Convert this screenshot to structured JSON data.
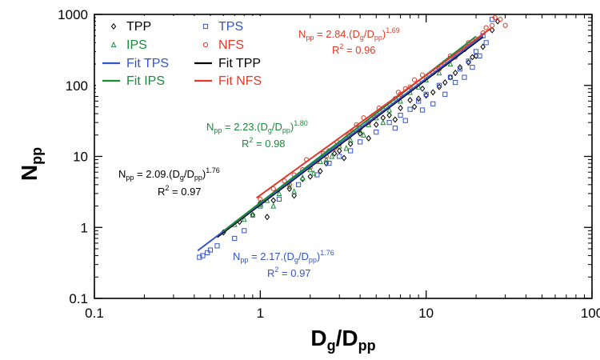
{
  "chart_data": {
    "type": "scatter",
    "xscale": "log",
    "yscale": "log",
    "xlim": [
      0.1,
      100
    ],
    "ylim": [
      0.1,
      1000
    ],
    "x_ticks": [
      "0.1",
      "1",
      "10",
      "100"
    ],
    "y_ticks": [
      "0.1",
      "1",
      "10",
      "100",
      "1000"
    ],
    "xlabel": {
      "main": "D",
      "sub1": "g",
      "mid": "/D",
      "sub2": "pp"
    },
    "ylabel": {
      "main": "N",
      "sub": "pp"
    },
    "grid": false,
    "legend": {
      "placement": "top-left"
    },
    "series": [
      {
        "name": "TPP",
        "marker": "diamond",
        "color": "#000000",
        "fit": {
          "label": "Fit TPP",
          "a": 2.09,
          "b": 1.76,
          "r2": "0.97",
          "color": "#000000",
          "x_range": [
            0.55,
            22
          ]
        },
        "points": [
          [
            0.6,
            0.85
          ],
          [
            0.75,
            1.2
          ],
          [
            0.9,
            1.5
          ],
          [
            1.0,
            2.2
          ],
          [
            1.2,
            2.4
          ],
          [
            1.5,
            3.5
          ],
          [
            1.8,
            4.8
          ],
          [
            2.0,
            5.2
          ],
          [
            2.5,
            8
          ],
          [
            3.0,
            12
          ],
          [
            3.5,
            15
          ],
          [
            4.0,
            21
          ],
          [
            5.0,
            28
          ],
          [
            6.0,
            38
          ],
          [
            7.0,
            48
          ],
          [
            8.0,
            62
          ],
          [
            9.0,
            65
          ],
          [
            10,
            72
          ],
          [
            12,
            95
          ],
          [
            15,
            150
          ],
          [
            18,
            210
          ],
          [
            20,
            260
          ],
          [
            22,
            350
          ],
          [
            25,
            600
          ],
          [
            27,
            800
          ],
          [
            1.6,
            2.8
          ],
          [
            2.3,
            6.2
          ],
          [
            3.2,
            9.5
          ],
          [
            4.5,
            18
          ],
          [
            6.5,
            33
          ],
          [
            8.5,
            50
          ],
          [
            11,
            80
          ],
          [
            13,
            110
          ],
          [
            16,
            180
          ],
          [
            19,
            250
          ],
          [
            1.1,
            1.4
          ],
          [
            2.8,
            11
          ],
          [
            5.5,
            35
          ],
          [
            9.5,
            90
          ],
          [
            14,
            130
          ]
        ]
      },
      {
        "name": "TPS",
        "marker": "square",
        "color": "#3355cc",
        "fit": {
          "label": "Fit TPS",
          "a": 2.17,
          "b": 1.76,
          "r2": "0.97",
          "color": "#3355cc",
          "x_range": [
            0.42,
            22
          ]
        },
        "points": [
          [
            0.43,
            0.38
          ],
          [
            0.45,
            0.4
          ],
          [
            0.48,
            0.44
          ],
          [
            0.5,
            0.48
          ],
          [
            0.55,
            0.55
          ],
          [
            0.7,
            0.7
          ],
          [
            0.8,
            0.9
          ],
          [
            1.0,
            2.0
          ],
          [
            1.3,
            2.5
          ],
          [
            1.7,
            4.0
          ],
          [
            2.2,
            5.5
          ],
          [
            2.6,
            8
          ],
          [
            3.0,
            10
          ],
          [
            3.5,
            12
          ],
          [
            4.0,
            16
          ],
          [
            5.0,
            22
          ],
          [
            6.0,
            30
          ],
          [
            7.0,
            38
          ],
          [
            8.0,
            46
          ],
          [
            9.0,
            60
          ],
          [
            10,
            75
          ],
          [
            12,
            100
          ],
          [
            14,
            130
          ],
          [
            16,
            170
          ],
          [
            18,
            220
          ],
          [
            20,
            300
          ],
          [
            22,
            500
          ],
          [
            25,
            850
          ],
          [
            9.5,
            45
          ],
          [
            11,
            55
          ],
          [
            15,
            110
          ],
          [
            6.5,
            25
          ],
          [
            7.5,
            32
          ],
          [
            13,
            75
          ],
          [
            17,
            130
          ],
          [
            19,
            180
          ],
          [
            21,
            260
          ],
          [
            23,
            400
          ]
        ]
      },
      {
        "name": "IPS",
        "marker": "triangle",
        "color": "#1a8a3a",
        "fit": {
          "label": "Fit IPS",
          "a": 2.23,
          "b": 1.8,
          "r2": "0.98",
          "color": "#1a8a3a",
          "x_range": [
            0.6,
            20
          ]
        },
        "points": [
          [
            0.7,
            1.1
          ],
          [
            0.8,
            1.3
          ],
          [
            0.9,
            1.5
          ],
          [
            1.0,
            2.1
          ],
          [
            1.1,
            2.4
          ],
          [
            1.3,
            3.0
          ],
          [
            1.5,
            3.8
          ],
          [
            1.8,
            5.0
          ],
          [
            2.0,
            6.5
          ],
          [
            2.3,
            8.5
          ],
          [
            2.7,
            10
          ],
          [
            3.0,
            14
          ],
          [
            3.5,
            17
          ],
          [
            4.0,
            23
          ],
          [
            4.5,
            28
          ],
          [
            5.0,
            35
          ],
          [
            6.0,
            45
          ],
          [
            7.0,
            60
          ],
          [
            8.0,
            80
          ],
          [
            9.0,
            95
          ],
          [
            10,
            120
          ],
          [
            12,
            150
          ],
          [
            14,
            200
          ],
          [
            1.2,
            2.0
          ],
          [
            1.6,
            3.2
          ],
          [
            2.1,
            5.8
          ],
          [
            2.5,
            9
          ],
          [
            3.3,
            13
          ],
          [
            4.2,
            20
          ],
          [
            5.5,
            30
          ]
        ]
      },
      {
        "name": "NFS",
        "marker": "circle",
        "color": "#e03a2a",
        "fit": {
          "label": "Fit NFS",
          "a": 2.84,
          "b": 1.69,
          "r2": "0.96",
          "color": "#e03a2a",
          "x_range": [
            0.95,
            25
          ]
        },
        "points": [
          [
            1.0,
            2.5
          ],
          [
            1.2,
            3.5
          ],
          [
            1.4,
            4.5
          ],
          [
            1.6,
            5.5
          ],
          [
            1.8,
            6.5
          ],
          [
            2.0,
            7.0
          ],
          [
            2.2,
            8.5
          ],
          [
            2.5,
            10
          ],
          [
            2.8,
            13
          ],
          [
            3.0,
            15
          ],
          [
            3.3,
            18
          ],
          [
            3.6,
            22
          ],
          [
            4.0,
            25
          ],
          [
            4.5,
            30
          ],
          [
            5.0,
            40
          ],
          [
            5.5,
            45
          ],
          [
            6.0,
            55
          ],
          [
            6.5,
            65
          ],
          [
            7.0,
            75
          ],
          [
            8.0,
            95
          ],
          [
            9.0,
            110
          ],
          [
            10,
            130
          ],
          [
            11,
            150
          ],
          [
            12,
            170
          ],
          [
            13,
            200
          ],
          [
            15,
            250
          ],
          [
            17,
            320
          ],
          [
            20,
            450
          ],
          [
            22,
            550
          ],
          [
            25,
            700
          ],
          [
            28,
            850
          ],
          [
            30,
            700
          ],
          [
            1.9,
            9
          ],
          [
            2.4,
            11
          ],
          [
            2.9,
            16
          ],
          [
            3.8,
            28
          ],
          [
            4.2,
            35
          ],
          [
            5.2,
            48
          ],
          [
            6.8,
            80
          ],
          [
            8.5,
            120
          ],
          [
            9.5,
            140
          ],
          [
            14,
            260
          ],
          [
            18,
            400
          ],
          [
            23,
            650
          ],
          [
            26,
            900
          ],
          [
            1.5,
            4
          ],
          [
            2.6,
            12
          ],
          [
            3.4,
            20
          ],
          [
            4.8,
            38
          ],
          [
            7.5,
            90
          ]
        ]
      }
    ],
    "legend_entries": [
      {
        "label": "TPP",
        "type": "marker",
        "marker": "diamond",
        "color": "#000000"
      },
      {
        "label": "TPS",
        "type": "marker",
        "marker": "square",
        "color": "#3355cc"
      },
      {
        "label": "IPS",
        "type": "marker",
        "marker": "triangle",
        "color": "#1a8a3a"
      },
      {
        "label": "NFS",
        "type": "marker",
        "marker": "circle",
        "color": "#e03a2a"
      },
      {
        "label": "Fit TPS",
        "type": "line",
        "color": "#3355cc"
      },
      {
        "label": "Fit TPP",
        "type": "line",
        "color": "#000000"
      },
      {
        "label": "Fit IPS",
        "type": "line",
        "color": "#1a8a3a"
      },
      {
        "label": "Fit NFS",
        "type": "line",
        "color": "#e03a2a"
      }
    ],
    "annotations": [
      {
        "series": "NFS",
        "color": "#e03a2a",
        "eq_main": "N",
        "eq_sub": "pp",
        "eq_mid1": " = 2.84.(D",
        "eq_sub_g": "g",
        "eq_mid2": "/D",
        "eq_sub_pp": "pp",
        "eq_mid3": ")",
        "eq_exp": "1.69",
        "r2_text": "R",
        "r2_sup": "2",
        "r2_val": " = 0.96"
      },
      {
        "series": "IPS",
        "color": "#1a8a3a",
        "eq_main": "N",
        "eq_sub": "pp",
        "eq_mid1": " = 2.23.(D",
        "eq_sub_g": "g",
        "eq_mid2": "/D",
        "eq_sub_pp": "pp",
        "eq_mid3": ")",
        "eq_exp": "1.80",
        "r2_text": "R",
        "r2_sup": "2",
        "r2_val": " = 0.98"
      },
      {
        "series": "TPP",
        "color": "#000000",
        "eq_main": "N",
        "eq_sub": "pp",
        "eq_mid1": " = 2.09.(D",
        "eq_sub_g": "g",
        "eq_mid2": "/D",
        "eq_sub_pp": "pp",
        "eq_mid3": ")",
        "eq_exp": "1.76",
        "r2_text": "R",
        "r2_sup": "2",
        "r2_val": " = 0.97"
      },
      {
        "series": "TPS",
        "color": "#3355cc",
        "eq_main": "N",
        "eq_sub": "pp",
        "eq_mid1": " = 2.17.(D",
        "eq_sub_g": "g",
        "eq_mid2": "/D",
        "eq_sub_pp": "pp",
        "eq_mid3": ")",
        "eq_exp": "1.76",
        "r2_text": "R",
        "r2_sup": "2",
        "r2_val": " = 0.97"
      }
    ]
  }
}
